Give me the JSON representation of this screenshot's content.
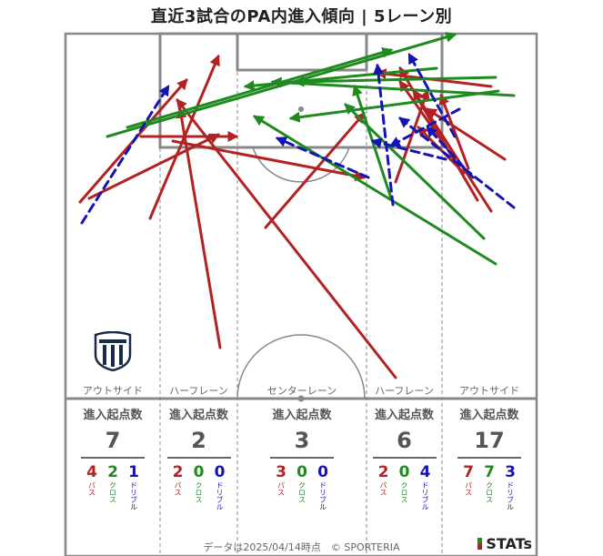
{
  "title": "直近3試合のPA内進入傾向 | 5レーン別",
  "lanes": [
    {
      "label": "アウトサイド",
      "heading": "進入起点数",
      "total": "7",
      "breakdown": [
        {
          "num": "4",
          "label": "パス"
        },
        {
          "num": "2",
          "label": "クロス"
        },
        {
          "num": "1",
          "label": "ドリブル"
        }
      ]
    },
    {
      "label": "ハーフレーン",
      "heading": "進入起点数",
      "total": "2",
      "breakdown": [
        {
          "num": "2",
          "label": "パス"
        },
        {
          "num": "0",
          "label": "クロス"
        },
        {
          "num": "0",
          "label": "ドリブル"
        }
      ]
    },
    {
      "label": "センターレーン",
      "heading": "進入起点数",
      "total": "3",
      "breakdown": [
        {
          "num": "3",
          "label": "パス"
        },
        {
          "num": "0",
          "label": "クロス"
        },
        {
          "num": "0",
          "label": "ドリブル"
        }
      ]
    },
    {
      "label": "ハーフレーン",
      "heading": "進入起点数",
      "total": "6",
      "breakdown": [
        {
          "num": "2",
          "label": "パス"
        },
        {
          "num": "0",
          "label": "クロス"
        },
        {
          "num": "4",
          "label": "ドリブル"
        }
      ]
    },
    {
      "label": "アウトサイド",
      "heading": "進入起点数",
      "total": "17",
      "breakdown": [
        {
          "num": "7",
          "label": "パス"
        },
        {
          "num": "7",
          "label": "クロス"
        },
        {
          "num": "3",
          "label": "ドリブル"
        }
      ]
    }
  ],
  "footer": "データは2025/04/14時点　© SPORTERIA",
  "brand": "STATs",
  "colors": {
    "pass": "#b22222",
    "cross": "#1f8a1f",
    "dribble": "#1414b4",
    "pitch_line": "#888888"
  },
  "chart_data": {
    "type": "pitch-arrows",
    "legend": [
      "パス",
      "クロス",
      "ドリブル"
    ],
    "arrows": [
      {
        "kind": "pass",
        "from": [
          88,
          222
        ],
        "to": [
          205,
          88
        ]
      },
      {
        "kind": "pass",
        "from": [
          98,
          218
        ],
        "to": [
          240,
          148
        ]
      },
      {
        "kind": "pass",
        "from": [
          165,
          240
        ],
        "to": [
          240,
          62
        ]
      },
      {
        "kind": "pass",
        "from": [
          242,
          382
        ],
        "to": [
          198,
          120
        ]
      },
      {
        "kind": "pass",
        "from": [
          292,
          250
        ],
        "to": [
          400,
          125
        ]
      },
      {
        "kind": "pass",
        "from": [
          155,
          150
        ],
        "to": [
          260,
          150
        ]
      },
      {
        "kind": "pass",
        "from": [
          435,
          415
        ],
        "to": [
          195,
          110
        ]
      },
      {
        "kind": "pass",
        "from": [
          190,
          155
        ],
        "to": [
          400,
          195
        ]
      },
      {
        "kind": "pass",
        "from": [
          435,
          200
        ],
        "to": [
          470,
          100
        ]
      },
      {
        "kind": "pass",
        "from": [
          540,
          232
        ],
        "to": [
          455,
          100
        ]
      },
      {
        "kind": "pass",
        "from": [
          525,
          220
        ],
        "to": [
          440,
          75
        ]
      },
      {
        "kind": "pass",
        "from": [
          500,
          175
        ],
        "to": [
          440,
          90
        ]
      },
      {
        "kind": "pass",
        "from": [
          540,
          95
        ],
        "to": [
          415,
          80
        ]
      },
      {
        "kind": "pass",
        "from": [
          555,
          175
        ],
        "to": [
          470,
          120
        ]
      },
      {
        "kind": "pass",
        "from": [
          510,
          190
        ],
        "to": [
          460,
          140
        ]
      },
      {
        "kind": "pass",
        "from": [
          515,
          185
        ],
        "to": [
          485,
          105
        ]
      },
      {
        "kind": "cross",
        "from": [
          118,
          150
        ],
        "to": [
          500,
          38
        ]
      },
      {
        "kind": "cross",
        "from": [
          140,
          140
        ],
        "to": [
          430,
          55
        ]
      },
      {
        "kind": "cross",
        "from": [
          545,
          290
        ],
        "to": [
          280,
          128
        ]
      },
      {
        "kind": "cross",
        "from": [
          532,
          262
        ],
        "to": [
          380,
          115
        ]
      },
      {
        "kind": "cross",
        "from": [
          565,
          105
        ],
        "to": [
          300,
          90
        ]
      },
      {
        "kind": "cross",
        "from": [
          480,
          75
        ],
        "to": [
          270,
          95
        ]
      },
      {
        "kind": "cross",
        "from": [
          430,
          218
        ],
        "to": [
          390,
          95
        ]
      },
      {
        "kind": "cross",
        "from": [
          548,
          100
        ],
        "to": [
          320,
          130
        ]
      },
      {
        "kind": "cross",
        "from": [
          545,
          85
        ],
        "to": [
          325,
          90
        ]
      },
      {
        "kind": "dribble",
        "from": [
          90,
          245
        ],
        "to": [
          185,
          95
        ]
      },
      {
        "kind": "dribble",
        "from": [
          405,
          195
        ],
        "to": [
          305,
          152
        ]
      },
      {
        "kind": "dribble",
        "from": [
          432,
          225
        ],
        "to": [
          415,
          72
        ]
      },
      {
        "kind": "dribble",
        "from": [
          565,
          228
        ],
        "to": [
          440,
          130
        ]
      },
      {
        "kind": "dribble",
        "from": [
          490,
          175
        ],
        "to": [
          410,
          155
        ]
      },
      {
        "kind": "dribble",
        "from": [
          520,
          195
        ],
        "to": [
          470,
          140
        ]
      },
      {
        "kind": "dribble",
        "from": [
          500,
          150
        ],
        "to": [
          450,
          60
        ]
      },
      {
        "kind": "dribble",
        "from": [
          505,
          120
        ],
        "to": [
          430,
          160
        ]
      }
    ]
  }
}
